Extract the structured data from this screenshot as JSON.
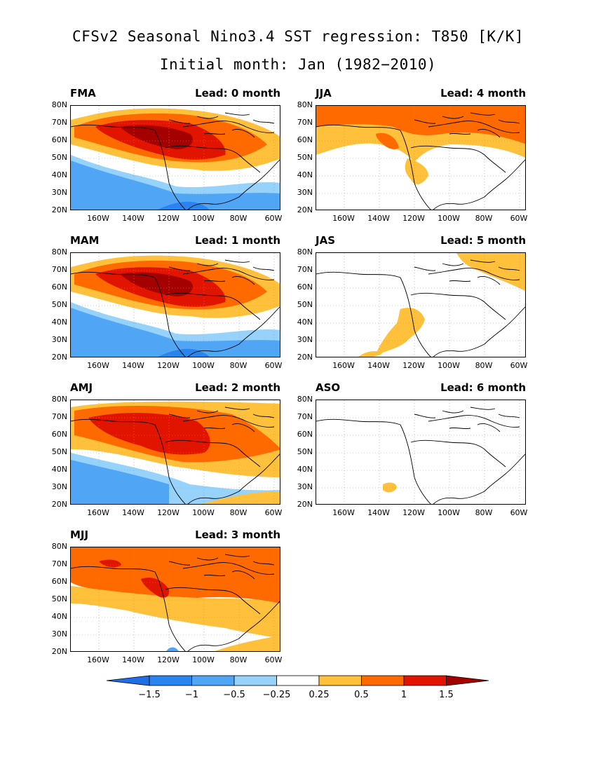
{
  "title": {
    "line1": "CFSv2 Seasonal Nino3.4 SST regression: T850 [K/K]",
    "line2": "Initial month: Jan (1982−2010)"
  },
  "axes": {
    "lat_labels": [
      "80N",
      "70N",
      "60N",
      "50N",
      "40N",
      "30N",
      "20N"
    ],
    "lon_labels": [
      "160W",
      "140W",
      "120W",
      "100W",
      "80W",
      "60W"
    ]
  },
  "panels": [
    {
      "season": "FMA",
      "lead": "Lead: 0 month",
      "pattern": "strong"
    },
    {
      "season": "JJA",
      "lead": "Lead: 4 month",
      "pattern": "weak"
    },
    {
      "season": "MAM",
      "lead": "Lead: 1 month",
      "pattern": "strong"
    },
    {
      "season": "JAS",
      "lead": "Lead: 5 month",
      "pattern": "faint"
    },
    {
      "season": "AMJ",
      "lead": "Lead: 2 month",
      "pattern": "medium"
    },
    {
      "season": "ASO",
      "lead": "Lead: 6 month",
      "pattern": "minimal"
    },
    {
      "season": "MJJ",
      "lead": "Lead: 3 month",
      "pattern": "moderate"
    }
  ],
  "colorbar": {
    "labels": [
      "−1.5",
      "−1",
      "−0.5",
      "−0.25",
      "0.25",
      "0.5",
      "1",
      "1.5"
    ],
    "colors": [
      "#1e6ee8",
      "#2a84f0",
      "#50a5f5",
      "#96d2fa",
      "#ffffff",
      "#ffc03c",
      "#ff6a00",
      "#e11400",
      "#a50000"
    ]
  }
}
